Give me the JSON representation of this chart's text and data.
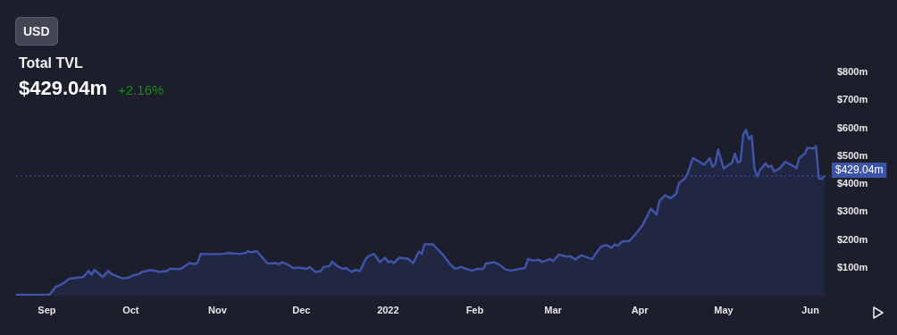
{
  "chart_data": {
    "type": "area",
    "title": "Total TVL",
    "subtitle": "$429.04m",
    "annotations": [
      "USD",
      "+2.16%"
    ],
    "xlim": [
      "2021-08-21",
      "2022-06-08"
    ],
    "xticks": [
      {
        "value": "2021-09-01",
        "label": "Sep"
      },
      {
        "value": "2021-10-01",
        "label": "Oct"
      },
      {
        "value": "2021-11-01",
        "label": "Nov"
      },
      {
        "value": "2021-12-01",
        "label": "Dec"
      },
      {
        "value": "2022-01-01",
        "label": "2022"
      },
      {
        "value": "2022-02-01",
        "label": "Feb"
      },
      {
        "value": "2022-03-01",
        "label": "Mar"
      },
      {
        "value": "2022-04-01",
        "label": "Apr"
      },
      {
        "value": "2022-05-01",
        "label": "May"
      },
      {
        "value": "2022-06-01",
        "label": "Jun"
      }
    ],
    "ylim": [
      0,
      800
    ],
    "yticks": [
      {
        "value": 100,
        "label": "$100m"
      },
      {
        "value": 200,
        "label": "$200m"
      },
      {
        "value": 300,
        "label": "$300m"
      },
      {
        "value": 400,
        "label": "$400m"
      },
      {
        "value": 500,
        "label": "$500m"
      },
      {
        "value": 600,
        "label": "$600m"
      },
      {
        "value": 700,
        "label": "$700m"
      },
      {
        "value": 800,
        "label": "$800m"
      }
    ],
    "grid": false,
    "legend": false,
    "ref_lines": [
      {
        "axis": "y",
        "value": 429.04,
        "label": "$429.04m",
        "color": "#3d55a8",
        "line_style": "dotted"
      }
    ],
    "series": [
      {
        "color": "#3f54a8",
        "x": [
          "2021-08-21",
          "2021-09-02",
          "2021-09-04",
          "2021-09-07",
          "2021-09-09",
          "2021-09-12",
          "2021-09-14",
          "2021-09-16",
          "2021-09-17",
          "2021-09-18",
          "2021-09-21",
          "2021-09-23",
          "2021-09-24",
          "2021-09-28",
          "2021-09-30",
          "2021-10-02",
          "2021-10-04",
          "2021-10-05",
          "2021-10-08",
          "2021-10-10",
          "2021-10-11",
          "2021-10-14",
          "2021-10-15",
          "2021-10-18",
          "2021-10-19",
          "2021-10-22",
          "2021-10-24",
          "2021-10-25",
          "2021-10-26",
          "2021-10-29",
          "2021-11-03",
          "2021-11-05",
          "2021-11-09",
          "2021-11-11",
          "2021-11-12",
          "2021-11-13",
          "2021-11-15",
          "2021-11-18",
          "2021-11-19",
          "2021-11-22",
          "2021-11-23",
          "2021-11-24",
          "2021-11-26",
          "2021-11-28",
          "2021-11-30",
          "2021-12-03",
          "2021-12-04",
          "2021-12-06",
          "2021-12-08",
          "2021-12-09",
          "2021-12-11",
          "2021-12-12",
          "2021-12-14",
          "2021-12-16",
          "2021-12-17",
          "2021-12-19",
          "2021-12-20",
          "2021-12-22",
          "2021-12-24",
          "2021-12-25",
          "2021-12-27",
          "2021-12-29",
          "2021-12-31",
          "2022-01-01",
          "2022-01-02",
          "2022-01-03",
          "2022-01-05",
          "2022-01-08",
          "2022-01-10",
          "2022-01-12",
          "2022-01-13",
          "2022-01-14",
          "2022-01-17",
          "2022-01-21",
          "2022-01-23",
          "2022-01-25",
          "2022-01-27",
          "2022-01-29",
          "2022-01-31",
          "2022-02-02",
          "2022-02-04",
          "2022-02-05",
          "2022-02-08",
          "2022-02-10",
          "2022-02-12",
          "2022-02-14",
          "2022-02-17",
          "2022-02-19",
          "2022-02-20",
          "2022-02-22",
          "2022-02-24",
          "2022-02-25",
          "2022-02-28",
          "2022-03-01",
          "2022-03-03",
          "2022-03-06",
          "2022-03-07",
          "2022-03-09",
          "2022-03-11",
          "2022-03-15",
          "2022-03-16",
          "2022-03-18",
          "2022-03-19",
          "2022-03-20",
          "2022-03-22",
          "2022-03-23",
          "2022-03-24",
          "2022-03-26",
          "2022-03-28",
          "2022-03-29",
          "2022-03-31",
          "2022-04-02",
          "2022-04-05",
          "2022-04-07",
          "2022-04-08",
          "2022-04-10",
          "2022-04-12",
          "2022-04-14",
          "2022-04-15",
          "2022-04-17",
          "2022-04-18",
          "2022-04-20",
          "2022-04-22",
          "2022-04-24",
          "2022-04-26",
          "2022-04-27",
          "2022-04-28",
          "2022-04-29",
          "2022-05-01",
          "2022-05-04",
          "2022-05-05",
          "2022-05-06",
          "2022-05-07",
          "2022-05-08",
          "2022-05-09",
          "2022-05-10",
          "2022-05-11",
          "2022-05-12",
          "2022-05-13",
          "2022-05-14",
          "2022-05-16",
          "2022-05-17",
          "2022-05-18",
          "2022-05-19",
          "2022-05-21",
          "2022-05-23",
          "2022-05-25",
          "2022-05-26",
          "2022-05-27",
          "2022-05-28",
          "2022-05-30",
          "2022-05-31",
          "2022-06-02",
          "2022-06-03",
          "2022-06-04",
          "2022-06-05",
          "2022-06-06"
        ],
        "values": [
          3,
          4,
          30,
          45,
          61,
          65,
          67,
          89,
          75,
          93,
          67,
          89,
          78,
          62,
          64,
          73,
          78,
          85,
          92,
          89,
          85,
          89,
          97,
          95,
          97,
          117,
          113,
          120,
          150,
          149,
          150,
          153,
          150,
          153,
          160,
          155,
          160,
          126,
          115,
          117,
          112,
          120,
          112,
          99,
          101,
          96,
          103,
          85,
          89,
          103,
          106,
          122,
          105,
          96,
          99,
          85,
          92,
          89,
          131,
          142,
          150,
          121,
          136,
          120,
          124,
          117,
          136,
          133,
          117,
          158,
          150,
          184,
          184,
          142,
          115,
          96,
          103,
          96,
          90,
          96,
          96,
          115,
          120,
          110,
          94,
          90,
          96,
          99,
          131,
          126,
          129,
          121,
          131,
          124,
          147,
          140,
          142,
          130,
          145,
          131,
          147,
          174,
          179,
          181,
          172,
          184,
          179,
          195,
          195,
          203,
          227,
          253,
          312,
          291,
          339,
          360,
          349,
          365,
          403,
          419,
          435,
          493,
          482,
          469,
          493,
          461,
          472,
          523,
          456,
          477,
          509,
          477,
          482,
          578,
          594,
          560,
          573,
          456,
          427,
          450,
          474,
          461,
          466,
          445,
          456,
          480,
          469,
          464,
          456,
          493,
          509,
          530,
          527,
          536,
          421,
          418,
          429
        ]
      }
    ]
  }
}
